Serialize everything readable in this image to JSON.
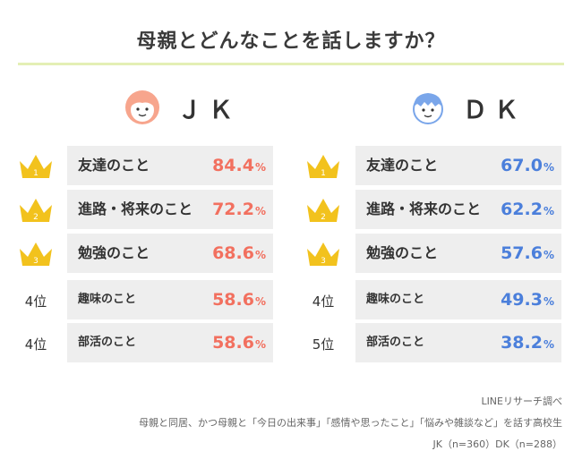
{
  "title": "母親とどんなことを話しますか？",
  "colors": {
    "jk_accent": "#f2705f",
    "dk_accent": "#4b7fdb",
    "crown": "#f2c21d",
    "rule": "#e4efb5",
    "row_bg": "#eeeeee"
  },
  "jk": {
    "label": "ＪＫ",
    "icon": "girl-face-icon",
    "rows": [
      {
        "rank": "1",
        "rank_type": "crown",
        "label": "友達のこと",
        "value": "84.4",
        "unit": "%"
      },
      {
        "rank": "2",
        "rank_type": "crown",
        "label": "進路・将来のこと",
        "value": "72.2",
        "unit": "%"
      },
      {
        "rank": "3",
        "rank_type": "crown",
        "label": "勉強のこと",
        "value": "68.6",
        "unit": "%"
      },
      {
        "rank": "4位",
        "rank_type": "text",
        "label": "趣味のこと",
        "value": "58.6",
        "unit": "%"
      },
      {
        "rank": "4位",
        "rank_type": "text",
        "label": "部活のこと",
        "value": "58.6",
        "unit": "%"
      }
    ]
  },
  "dk": {
    "label": "ＤＫ",
    "icon": "boy-face-icon",
    "rows": [
      {
        "rank": "1",
        "rank_type": "crown",
        "label": "友達のこと",
        "value": "67.0",
        "unit": "%"
      },
      {
        "rank": "2",
        "rank_type": "crown",
        "label": "進路・将来のこと",
        "value": "62.2",
        "unit": "%"
      },
      {
        "rank": "3",
        "rank_type": "crown",
        "label": "勉強のこと",
        "value": "57.6",
        "unit": "%"
      },
      {
        "rank": "4位",
        "rank_type": "text",
        "label": "趣味のこと",
        "value": "49.3",
        "unit": "%"
      },
      {
        "rank": "5位",
        "rank_type": "text",
        "label": "部活のこと",
        "value": "38.2",
        "unit": "%"
      }
    ]
  },
  "footnote": {
    "source": "LINEリサーチ調べ",
    "note": "母親と同居、かつ母親と「今日の出来事」「感情や思ったこと」「悩みや雑談など」を話す高校生",
    "sample": "JK（n=360）DK（n=288）"
  }
}
